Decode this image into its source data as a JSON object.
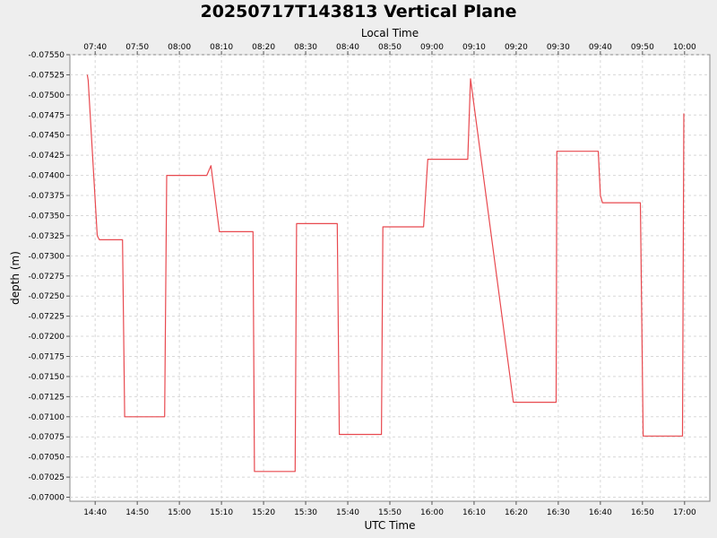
{
  "chart_data": {
    "type": "line",
    "title": "20250717T143813 Vertical Plane",
    "xlabel": "UTC Time",
    "x2label": "Local Time",
    "ylabel": "depth (m)",
    "y_inverted": true,
    "ylim": [
      -0.0755,
      -0.06995
    ],
    "yticks": [
      -0.0755,
      -0.07525,
      -0.075,
      -0.07475,
      -0.0745,
      -0.07425,
      -0.074,
      -0.07375,
      -0.0735,
      -0.07325,
      -0.073,
      -0.07275,
      -0.0725,
      -0.07225,
      -0.072,
      -0.07175,
      -0.0715,
      -0.07125,
      -0.071,
      -0.07075,
      -0.0705,
      -0.07025,
      -0.07
    ],
    "yticklabels": [
      "-0.07550",
      "-0.07525",
      "-0.07500",
      "-0.07475",
      "-0.07450",
      "-0.07425",
      "-0.07400",
      "-0.07375",
      "-0.07350",
      "-0.07325",
      "-0.07300",
      "-0.07275",
      "-0.07250",
      "-0.07225",
      "-0.07200",
      "-0.07175",
      "-0.07150",
      "-0.07125",
      "-0.07100",
      "-0.07075",
      "-0.07050",
      "-0.07025",
      "-0.07000"
    ],
    "xlim": [
      "14:34",
      "17:06"
    ],
    "xticks": [
      "14:40",
      "14:50",
      "15:00",
      "15:10",
      "15:20",
      "15:30",
      "15:40",
      "15:50",
      "16:00",
      "16:10",
      "16:20",
      "16:30",
      "16:40",
      "16:50",
      "17:00"
    ],
    "x2ticklabels": [
      "07:40",
      "07:50",
      "08:00",
      "08:10",
      "08:20",
      "08:30",
      "08:40",
      "08:50",
      "09:00",
      "09:10",
      "09:20",
      "09:30",
      "09:40",
      "09:50",
      "10:00"
    ],
    "grid": true,
    "series": [
      {
        "color": "#e8494f",
        "points": [
          [
            "14:38:08",
            -0.07525
          ],
          [
            "14:38:20",
            -0.07518
          ],
          [
            "14:40:30",
            -0.07325
          ],
          [
            "14:41:00",
            -0.0732
          ],
          [
            "14:46:30",
            -0.0732
          ],
          [
            "14:47:00",
            -0.071
          ],
          [
            "14:56:30",
            -0.071
          ],
          [
            "14:57:00",
            -0.074
          ],
          [
            "15:06:30",
            -0.074
          ],
          [
            "15:07:30",
            -0.07412
          ],
          [
            "15:09:30",
            -0.0733
          ],
          [
            "15:17:30",
            -0.0733
          ],
          [
            "15:17:50",
            -0.07032
          ],
          [
            "15:27:30",
            -0.07032
          ],
          [
            "15:27:50",
            -0.0734
          ],
          [
            "15:37:30",
            -0.0734
          ],
          [
            "15:38:00",
            -0.07078
          ],
          [
            "15:48:00",
            -0.07078
          ],
          [
            "15:48:20",
            -0.07336
          ],
          [
            "15:58:00",
            -0.07336
          ],
          [
            "15:59:00",
            -0.0742
          ],
          [
            "16:08:30",
            -0.0742
          ],
          [
            "16:09:10",
            -0.0752
          ],
          [
            "16:19:20",
            -0.07118
          ],
          [
            "16:29:30",
            -0.07118
          ],
          [
            "16:29:40",
            -0.0743
          ],
          [
            "16:39:30",
            -0.0743
          ],
          [
            "16:40:00",
            -0.07375
          ],
          [
            "16:40:30",
            -0.07366
          ],
          [
            "16:49:30",
            -0.07366
          ],
          [
            "16:50:10",
            -0.07076
          ],
          [
            "16:59:30",
            -0.07076
          ],
          [
            "16:59:50",
            -0.07477
          ]
        ]
      }
    ]
  }
}
